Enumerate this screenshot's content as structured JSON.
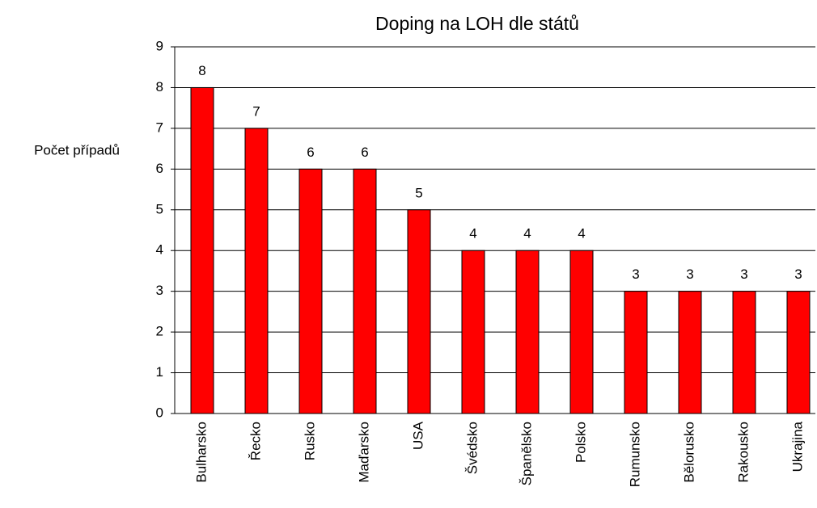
{
  "chart_data": {
    "type": "bar",
    "title": "Doping na LOH dle států",
    "y_label": "Počet případů",
    "categories": [
      "Bulharsko",
      "Řecko",
      "Rusko",
      "Maďarsko",
      "USA",
      "Švédsko",
      "Španělsko",
      "Polsko",
      "Rumunsko",
      "Bělorusko",
      "Rakousko",
      "Ukrajina"
    ],
    "values": [
      8,
      7,
      6,
      6,
      5,
      4,
      4,
      4,
      3,
      3,
      3,
      3
    ],
    "color": "#ff0000",
    "ylim": [
      0,
      9
    ],
    "yticks": [
      0,
      1,
      2,
      3,
      4,
      5,
      6,
      7,
      8,
      9
    ],
    "grid": true
  }
}
